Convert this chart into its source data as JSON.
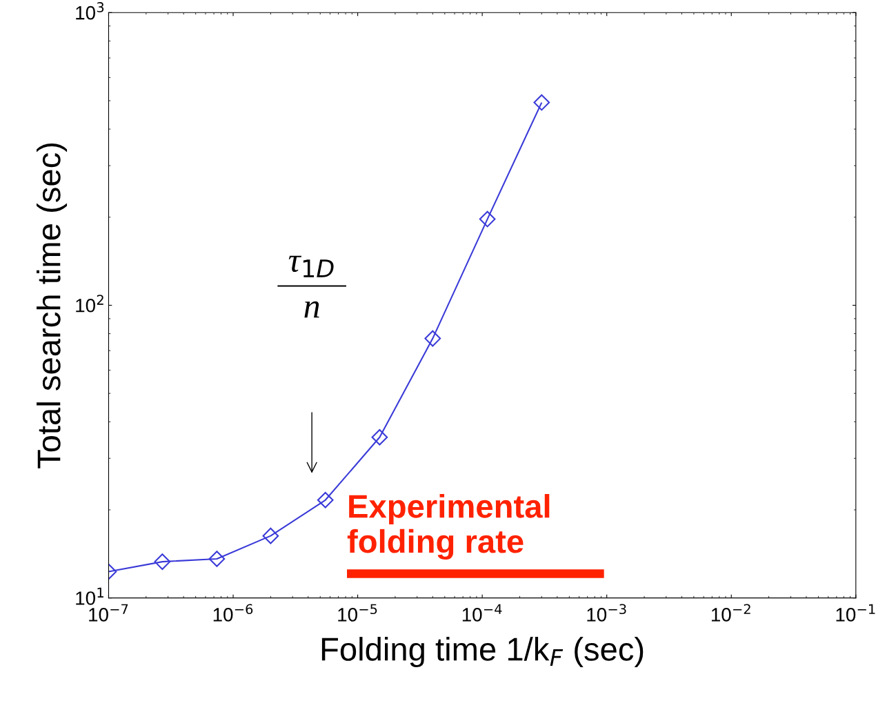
{
  "chart_data": {
    "type": "line",
    "xlabel": "Folding time 1/k$_{F}$ (sec)",
    "ylabel": "Total search time (sec)",
    "log": "xy",
    "x": [
      1e-07,
      2.7e-07,
      7.4e-07,
      2e-06,
      5.5e-06,
      1.5e-05,
      4e-05,
      0.00011,
      0.0003
    ],
    "series": [
      {
        "color": "#3a3ad8",
        "values": [
          12.3,
          13.3,
          13.6,
          16.3,
          21.6,
          35.4,
          77,
          197,
          493
        ]
      },
      {
        "name": "Experimental\nfolding rate",
        "color": "#ff2200",
        "x": [
          8.2e-06,
          0.00095
        ],
        "values": [
          12.1,
          12.1
        ],
        "marker": "none"
      }
    ],
    "marker": "diamond",
    "line_style": "solid",
    "grid": false,
    "xlim": [
      1e-07,
      0.1
    ],
    "xticks": [
      {
        "value": 1e-07,
        "label": "10$^{−7}$"
      },
      {
        "value": 1e-06,
        "label": "10$^{−6}$"
      },
      {
        "value": 1e-05,
        "label": "10$^{−5}$"
      },
      {
        "value": 0.0001,
        "label": "10$^{−4}$"
      },
      {
        "value": 0.001,
        "label": "10$^{−3}$"
      },
      {
        "value": 0.01,
        "label": "10$^{−2}$"
      },
      {
        "value": 0.1,
        "label": "10$^{−1}$"
      }
    ],
    "ylim": [
      10,
      1000
    ],
    "yticks": [
      {
        "value": 10,
        "label": "10$^{1}$"
      },
      {
        "value": 100,
        "label": "10$^{2}$"
      },
      {
        "value": 1000,
        "label": "10$^{3}$"
      }
    ],
    "annotations": [
      "τ$_{1D}$",
      "n"
    ]
  }
}
